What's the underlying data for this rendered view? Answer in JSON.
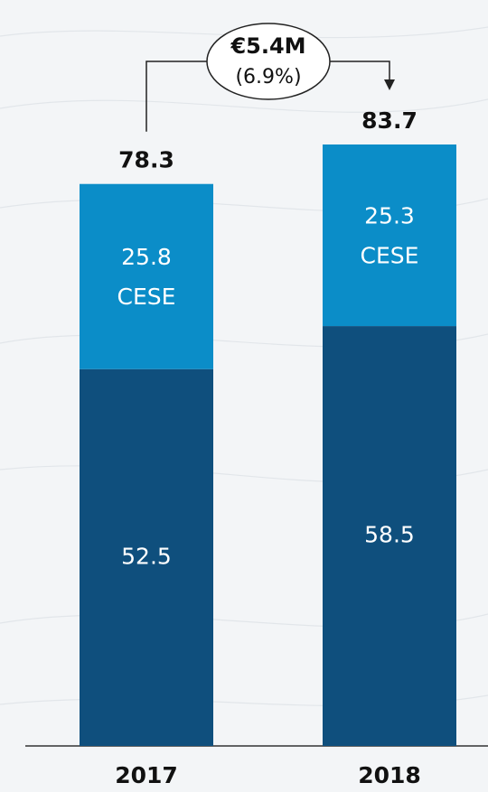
{
  "chart_data": {
    "type": "stacked_bar",
    "categories": [
      "2017",
      "2018"
    ],
    "series": [
      {
        "values": [
          52.5,
          58.5
        ],
        "color": "#0f4f7d"
      },
      {
        "name": "CESE",
        "values": [
          25.8,
          25.3
        ],
        "color": "#0b8dc8"
      }
    ],
    "totals": [
      78.3,
      83.7
    ],
    "annotation": {
      "text": "€5.4M",
      "subtext": "(6.9%)"
    }
  }
}
